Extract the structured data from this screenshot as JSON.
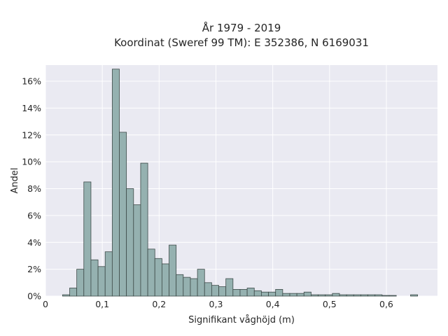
{
  "chart_data": {
    "type": "bar",
    "title": "År 1979 - 2019",
    "subtitle": "Koordinat (Sweref 99 TM): E 352386, N 6169031",
    "xlabel": "Signifikant våghöjd (m)",
    "ylabel": "Andel",
    "xlim": [
      0,
      0.69
    ],
    "ylim": [
      0,
      0.172
    ],
    "x_ticks": [
      0,
      0.1,
      0.2,
      0.3,
      0.4,
      0.5,
      0.6
    ],
    "x_tick_labels": [
      "0",
      "0,1",
      "0,2",
      "0,3",
      "0,4",
      "0,5",
      "0,6"
    ],
    "y_ticks": [
      0,
      0.02,
      0.04,
      0.06,
      0.08,
      0.1,
      0.12,
      0.14,
      0.16
    ],
    "y_tick_labels": [
      "0%",
      "2%",
      "4%",
      "6%",
      "8%",
      "10%",
      "12%",
      "14%",
      "16%"
    ],
    "grid": true,
    "bin_width": 0.0125,
    "bin_starts": [
      0.03,
      0.0425,
      0.055,
      0.0675,
      0.08,
      0.0925,
      0.105,
      0.1175,
      0.13,
      0.1425,
      0.155,
      0.1675,
      0.18,
      0.1925,
      0.205,
      0.2175,
      0.23,
      0.2425,
      0.255,
      0.2675,
      0.28,
      0.2925,
      0.305,
      0.3175,
      0.33,
      0.3425,
      0.355,
      0.3675,
      0.38,
      0.3925,
      0.405,
      0.4175,
      0.43,
      0.4425,
      0.455,
      0.4675,
      0.48,
      0.4925,
      0.505,
      0.5175,
      0.53,
      0.5425,
      0.555,
      0.5675,
      0.58,
      0.5925,
      0.605,
      0.6175,
      0.63,
      0.6425
    ],
    "values": [
      0.001,
      0.006,
      0.02,
      0.085,
      0.027,
      0.022,
      0.033,
      0.169,
      0.122,
      0.08,
      0.068,
      0.099,
      0.035,
      0.028,
      0.024,
      0.038,
      0.016,
      0.014,
      0.013,
      0.02,
      0.01,
      0.008,
      0.007,
      0.013,
      0.005,
      0.005,
      0.006,
      0.004,
      0.003,
      0.003,
      0.005,
      0.002,
      0.002,
      0.002,
      0.003,
      0.001,
      0.001,
      0.001,
      0.002,
      0.001,
      0.001,
      0.001,
      0.001,
      0.001,
      0.001,
      0.0005,
      0.0005,
      0,
      0,
      0.001
    ],
    "colors": {
      "bar_fill": "#95b1b0",
      "bar_edge": "#3d4a48",
      "plot_bg": "#eaeaf2",
      "grid": "#ffffff"
    }
  }
}
